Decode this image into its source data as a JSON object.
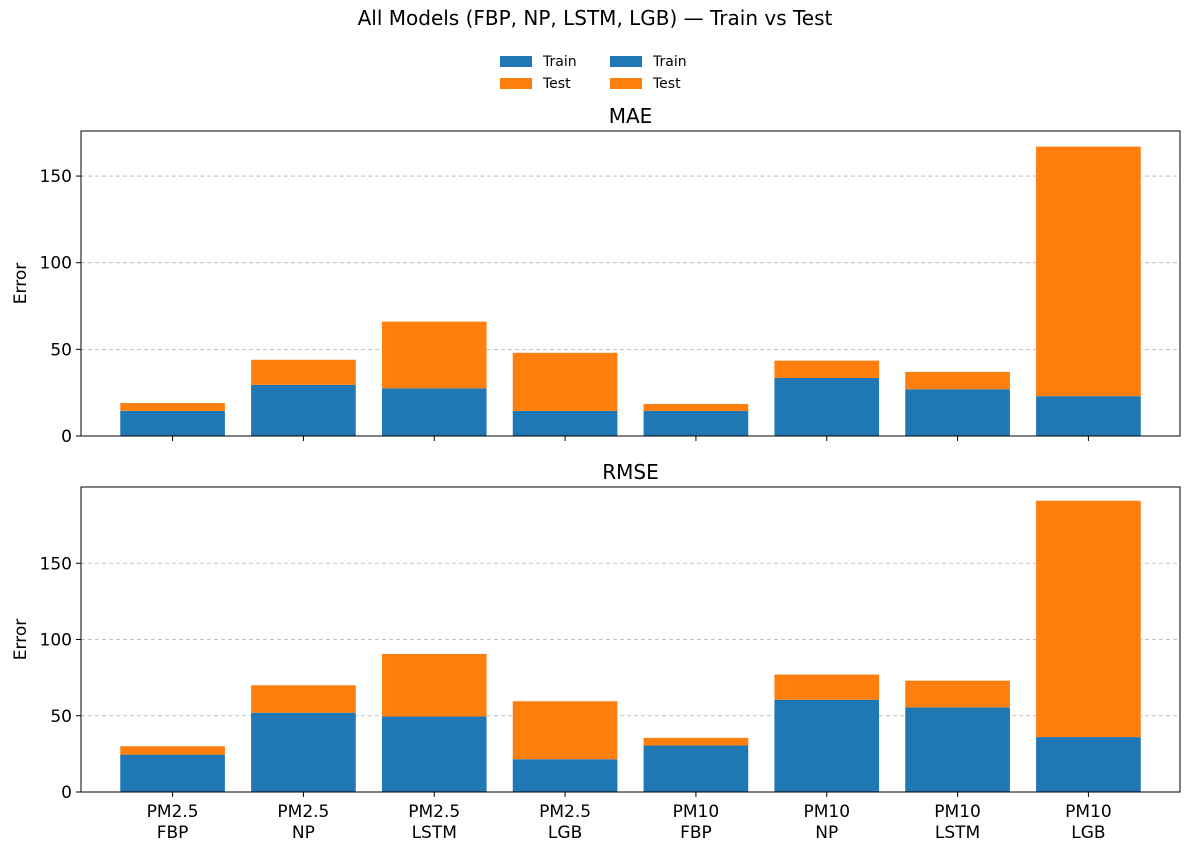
{
  "title": "All Models (FBP, NP, LSTM, LGB) — Train vs Test",
  "legend": {
    "placement": "top-center",
    "entries": [
      {
        "label": "Train",
        "color": "#1f77b4"
      },
      {
        "label": "Test",
        "color": "#ff7f0e"
      },
      {
        "label": "Train",
        "color": "#1f77b4"
      },
      {
        "label": "Test",
        "color": "#ff7f0e"
      }
    ]
  },
  "colors": {
    "train": "#1f77b4",
    "test": "#ff7f0e"
  },
  "chart_data": [
    {
      "type": "bar",
      "stacked": true,
      "title": "MAE",
      "ylabel": "Error",
      "xlabel": "",
      "ylim": [
        0,
        176
      ],
      "yticks": [
        0,
        50,
        100,
        150
      ],
      "grid": "y-dashed",
      "show_xticklabels": false,
      "categories": [
        "PM2.5\nFBP",
        "PM2.5\nNP",
        "PM2.5\nLSTM",
        "PM2.5\nLGB",
        "PM10\nFBP",
        "PM10\nNP",
        "PM10\nLSTM",
        "PM10\nLGB"
      ],
      "series": [
        {
          "name": "Train",
          "values": [
            14.5,
            29.5,
            27.5,
            14.5,
            14.5,
            33.5,
            27,
            23
          ]
        },
        {
          "name": "Test",
          "values": [
            4.5,
            14.5,
            38.5,
            33.5,
            4,
            10,
            10,
            144
          ]
        }
      ]
    },
    {
      "type": "bar",
      "stacked": true,
      "title": "RMSE",
      "ylabel": "Error",
      "xlabel": "",
      "ylim": [
        0,
        200
      ],
      "yticks": [
        0,
        50,
        100,
        150
      ],
      "grid": "y-dashed",
      "show_xticklabels": true,
      "categories": [
        "PM2.5\nFBP",
        "PM2.5\nNP",
        "PM2.5\nLSTM",
        "PM2.5\nLGB",
        "PM10\nFBP",
        "PM10\nNP",
        "PM10\nLSTM",
        "PM10\nLGB"
      ],
      "series": [
        {
          "name": "Train",
          "values": [
            24.5,
            52,
            49.5,
            21.5,
            30.5,
            60.5,
            55.5,
            36
          ]
        },
        {
          "name": "Test",
          "values": [
            5.5,
            18,
            41,
            38,
            5,
            16.5,
            17.5,
            155
          ]
        }
      ]
    }
  ]
}
